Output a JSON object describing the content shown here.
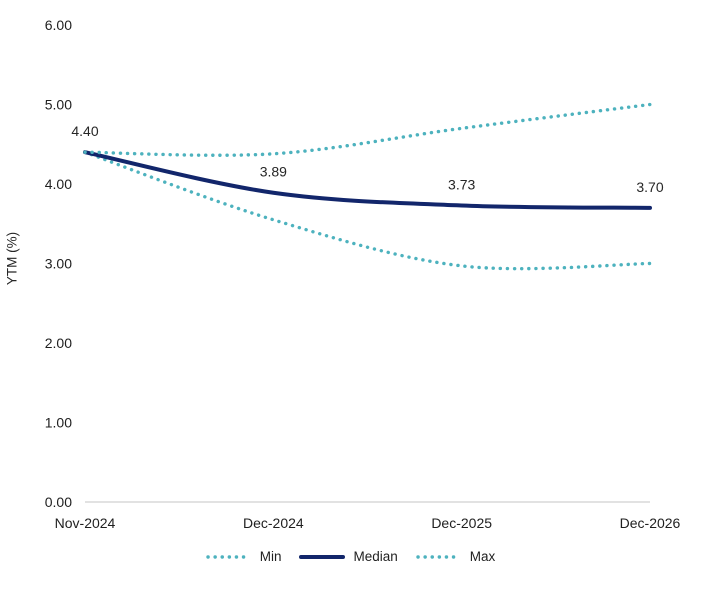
{
  "chart_data": {
    "type": "line",
    "title": "",
    "ylabel": "YTM (%)",
    "xlabel": "",
    "categories": [
      "Nov-2024",
      "Dec-2024",
      "Dec-2025",
      "Dec-2026"
    ],
    "series": [
      {
        "name": "Min",
        "line_style": "dotted",
        "color": "#4db2be",
        "values": [
          4.4,
          3.55,
          2.97,
          3.0
        ]
      },
      {
        "name": "Median",
        "line_style": "solid",
        "color": "#12266b",
        "values": [
          4.4,
          3.89,
          3.73,
          3.7
        ]
      },
      {
        "name": "Max",
        "line_style": "dotted",
        "color": "#4db2be",
        "values": [
          4.4,
          4.38,
          4.7,
          5.0
        ]
      }
    ],
    "data_labels": {
      "series": "Median",
      "labels": [
        "4.40",
        "3.89",
        "3.73",
        "3.70"
      ]
    },
    "y_tick_labels": [
      "0.00",
      "1.00",
      "2.00",
      "3.00",
      "4.00",
      "5.00",
      "6.00"
    ],
    "ylim": [
      0,
      6
    ],
    "grid": false,
    "legend_position": "bottom",
    "colors": {
      "axis_line": "#d9d9d9",
      "tick_text": "#1f1f1f",
      "data_label_text": "#262626"
    }
  }
}
